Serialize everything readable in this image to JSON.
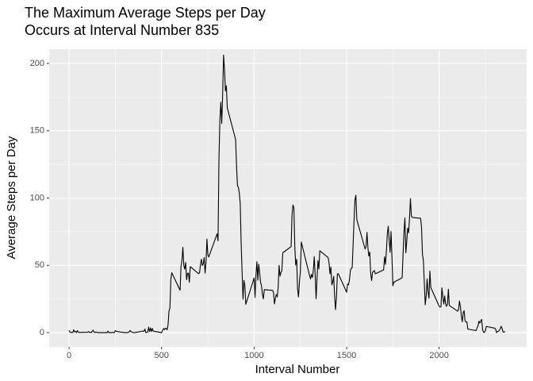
{
  "chart_data": {
    "type": "line",
    "title": [
      "The Maximum Average Steps per Day",
      "Occurs at Interval Number 835"
    ],
    "x_label": "Interval Number",
    "y_label": "Average Steps per Day",
    "color": "#000000",
    "grid": true,
    "panel_color": "#ebebeb",
    "xlim": [
      -107.6,
      2473
    ],
    "ylim": [
      -10.6,
      210.6
    ],
    "xticks": [
      0,
      500,
      1000,
      1500,
      2000
    ],
    "yticks": [
      0,
      50,
      100,
      150,
      200
    ],
    "x_minor_grid": [
      250,
      750,
      1250,
      1750,
      2250
    ],
    "y_minor_grid": [
      25,
      75,
      125,
      175
    ],
    "x": [
      0,
      5,
      10,
      15,
      20,
      25,
      30,
      35,
      40,
      45,
      50,
      55,
      100,
      105,
      110,
      115,
      120,
      125,
      130,
      135,
      140,
      145,
      150,
      155,
      200,
      205,
      210,
      215,
      220,
      225,
      230,
      235,
      240,
      245,
      250,
      255,
      300,
      305,
      310,
      315,
      320,
      325,
      330,
      335,
      340,
      345,
      350,
      355,
      400,
      405,
      410,
      415,
      420,
      425,
      430,
      435,
      440,
      445,
      450,
      455,
      500,
      505,
      510,
      515,
      520,
      525,
      530,
      535,
      540,
      545,
      550,
      555,
      600,
      605,
      610,
      615,
      620,
      625,
      630,
      635,
      640,
      645,
      650,
      655,
      700,
      705,
      710,
      715,
      720,
      725,
      730,
      735,
      740,
      745,
      750,
      755,
      800,
      805,
      810,
      815,
      820,
      825,
      830,
      835,
      840,
      845,
      850,
      855,
      900,
      905,
      910,
      915,
      920,
      925,
      930,
      935,
      940,
      945,
      950,
      955,
      1000,
      1005,
      1010,
      1015,
      1020,
      1025,
      1030,
      1035,
      1040,
      1045,
      1050,
      1055,
      1100,
      1105,
      1110,
      1115,
      1120,
      1125,
      1130,
      1135,
      1140,
      1145,
      1150,
      1155,
      1200,
      1205,
      1210,
      1215,
      1220,
      1225,
      1230,
      1235,
      1240,
      1245,
      1250,
      1255,
      1300,
      1305,
      1310,
      1315,
      1320,
      1325,
      1330,
      1335,
      1340,
      1345,
      1350,
      1355,
      1400,
      1405,
      1410,
      1415,
      1420,
      1425,
      1430,
      1435,
      1440,
      1445,
      1450,
      1455,
      1500,
      1505,
      1510,
      1515,
      1520,
      1525,
      1530,
      1535,
      1540,
      1545,
      1550,
      1555,
      1600,
      1605,
      1610,
      1615,
      1620,
      1625,
      1630,
      1635,
      1640,
      1645,
      1650,
      1655,
      1700,
      1705,
      1710,
      1715,
      1720,
      1725,
      1730,
      1735,
      1740,
      1745,
      1750,
      1755,
      1800,
      1805,
      1810,
      1815,
      1820,
      1825,
      1830,
      1835,
      1840,
      1845,
      1850,
      1855,
      1900,
      1905,
      1910,
      1915,
      1920,
      1925,
      1930,
      1935,
      1940,
      1945,
      1950,
      1955,
      2000,
      2005,
      2010,
      2015,
      2020,
      2025,
      2030,
      2035,
      2040,
      2045,
      2050,
      2055,
      2100,
      2105,
      2110,
      2115,
      2120,
      2125,
      2130,
      2135,
      2140,
      2145,
      2150,
      2155,
      2200,
      2205,
      2210,
      2215,
      2220,
      2225,
      2230,
      2235,
      2240,
      2245,
      2250,
      2255,
      2300,
      2305,
      2310,
      2315,
      2320,
      2325,
      2330,
      2335,
      2340,
      2345,
      2350,
      2355
    ],
    "values": [
      1.7,
      0.3,
      0.1,
      0.2,
      0.1,
      2.1,
      0.5,
      0.9,
      0,
      1.5,
      0.3,
      0.1,
      0.3,
      0.7,
      0.2,
      0.3,
      0,
      1.1,
      1.8,
      0.2,
      0.2,
      0.4,
      0.3,
      0,
      0,
      0,
      1.1,
      0,
      0,
      0.1,
      0,
      0.2,
      0,
      0,
      1.5,
      0.9,
      0,
      0,
      0,
      0,
      0.2,
      0.6,
      1.6,
      0.6,
      0.5,
      0.1,
      0,
      0,
      1.2,
      0.9,
      2.6,
      0,
      0.3,
      0.4,
      4.1,
      0.7,
      3.5,
      0.8,
      3.1,
      1.1,
      0,
      1.6,
      3,
      2.2,
      3.3,
      3,
      2.1,
      6,
      16,
      18.3,
      39.5,
      44.5,
      31.5,
      49.3,
      53.8,
      63.5,
      50,
      47.1,
      52.2,
      39.3,
      44,
      44.2,
      37.4,
      49,
      43.8,
      44.4,
      50.5,
      54.5,
      49.9,
      51,
      55.7,
      44.3,
      52.3,
      69.5,
      57.8,
      56.2,
      73.4,
      68.2,
      129.4,
      157.5,
      171.2,
      155.4,
      177.3,
      206.2,
      195.9,
      179.6,
      183.4,
      167,
      143.5,
      124,
      109.1,
      108.1,
      103.7,
      95.9,
      66.2,
      45.2,
      24.8,
      38.8,
      34.9,
      21,
      40.6,
      26.1,
      42.4,
      52.7,
      38.9,
      50.8,
      44.3,
      37.4,
      34.7,
      28.3,
      25.1,
      31.9,
      31.4,
      29.7,
      21.3,
      25.5,
      28.4,
      26.5,
      33.4,
      50,
      42,
      44.6,
      46,
      59.3,
      63.9,
      87.7,
      94.8,
      92.8,
      63.4,
      50.2,
      54.5,
      32.4,
      26.5,
      37.7,
      45,
      67.3,
      42.3,
      39.9,
      43.3,
      41,
      46.2,
      56.4,
      42.8,
      25.1,
      39.9,
      53.5,
      47.3,
      60.8,
      55.8,
      51.9,
      43.6,
      48.7,
      35.5,
      37.5,
      41.8,
      27.5,
      17.1,
      26.1,
      43.6,
      43.8,
      30,
      36.1,
      35.5,
      38.8,
      45.9,
      47.8,
      48.1,
      65.3,
      82.9,
      98.7,
      102.1,
      84,
      62.1,
      64.1,
      74.5,
      63.2,
      56.9,
      59.8,
      43.9,
      38.6,
      44.7,
      45.5,
      46.2,
      43.7,
      46.6,
      56.3,
      50.7,
      61.2,
      73.4,
      79.1,
      68.9,
      59.7,
      75.1,
      56.5,
      34.8,
      37.5,
      40.7,
      58,
      74.7,
      85.3,
      59.3,
      67.8,
      77.7,
      74.2,
      85.3,
      99.5,
      86.6,
      85.6,
      84.9,
      77.8,
      58,
      53.4,
      36.3,
      20.7,
      27.4,
      40,
      30.2,
      25.5,
      45.7,
      33.5,
      19.6,
      19,
      19.3,
      33.3,
      26.8,
      21.2,
      27.3,
      21.3,
      19.5,
      21.3,
      32.3,
      20.2,
      15.9,
      17.2,
      23.5,
      19.2,
      12.5,
      8,
      14.7,
      16.3,
      8.7,
      7.8,
      8.1,
      2.6,
      1.5,
      3.7,
      4.8,
      8.5,
      7.1,
      8.7,
      9.8,
      2.2,
      0.3,
      0.1,
      1.6,
      4.6,
      3.3,
      2.8,
      0,
      0.8,
      1,
      1.6,
      2.6,
      4.7,
      3.3,
      0.6,
      0.2,
      1.1
    ]
  }
}
